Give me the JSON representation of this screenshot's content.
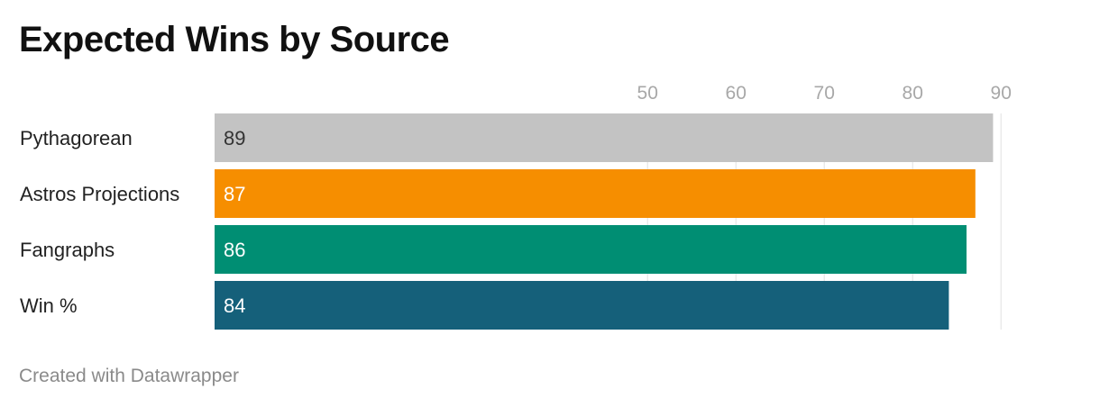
{
  "chart_data": {
    "type": "bar",
    "title": "Expected Wins by Source",
    "categories": [
      "Pythagorean",
      "Astros Projections",
      "Fangraphs",
      "Win %"
    ],
    "values": [
      89,
      87,
      86,
      84
    ],
    "colors": [
      "#c3c3c3",
      "#f68e00",
      "#008e73",
      "#15607a"
    ],
    "value_label_colors": [
      "#333333",
      "#ffffff",
      "#ffffff",
      "#ffffff"
    ],
    "x_ticks": [
      50,
      60,
      70,
      80,
      90
    ],
    "xlim": [
      0,
      90
    ],
    "grid": true,
    "tick_position": "top",
    "orientation": "horizontal"
  },
  "footer": {
    "credit": "Created with Datawrapper"
  }
}
